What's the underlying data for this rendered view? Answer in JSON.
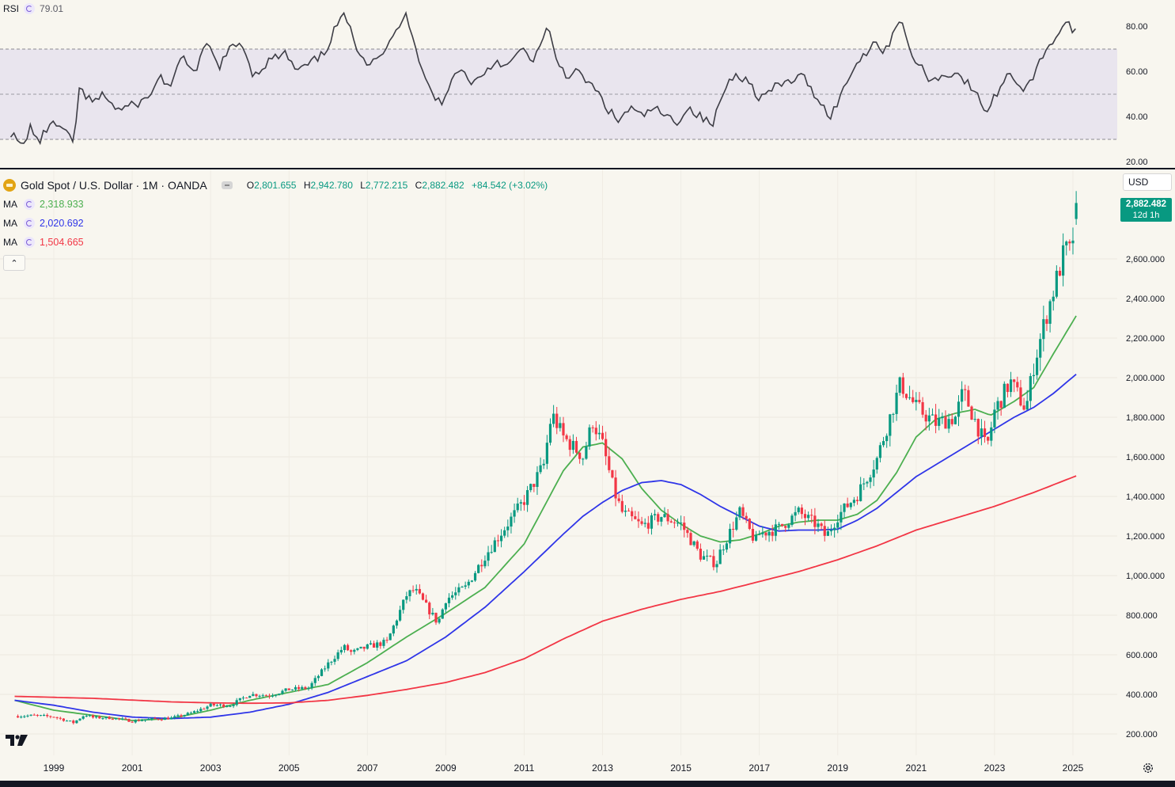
{
  "rsi": {
    "name": "RSI",
    "value": "79.01",
    "scale_labels": [
      "80.00",
      "60.00",
      "40.00",
      "20.00"
    ]
  },
  "symbol": {
    "title": "Gold Spot / U.S. Dollar · 1M · OANDA",
    "open_label": "O",
    "open": "2,801.655",
    "high_label": "H",
    "high": "2,942.780",
    "low_label": "L",
    "low": "2,772.215",
    "close_label": "C",
    "close": "2,882.482",
    "change": "+84.542 (+3.02%)"
  },
  "mas": [
    {
      "label": "MA",
      "value": "2,318.933",
      "color": "#4caf50"
    },
    {
      "label": "MA",
      "value": "2,020.692",
      "color": "#2f35e8"
    },
    {
      "label": "MA",
      "value": "1,504.665",
      "color": "#f23645"
    }
  ],
  "currency": "USD",
  "last_price": {
    "price": "2,882.482",
    "countdown": "12d 1h"
  },
  "colors": {
    "up": "#089981",
    "down": "#f23645",
    "rsi_line": "#3d3d45",
    "rsi_band": "#e9e5ee",
    "background": "#f8f6ef"
  },
  "icons": [
    "gold-coin-icon",
    "cycle-icon",
    "eye-icon",
    "chevron-up-icon",
    "tradingview-logo-icon",
    "gear-icon"
  ],
  "chart_data": {
    "type": "candlestick",
    "interval": "1M",
    "x_tick_labels": [
      "1999",
      "2001",
      "2003",
      "2005",
      "2007",
      "2009",
      "2011",
      "2013",
      "2015",
      "2017",
      "2019",
      "2021",
      "2023",
      "2025"
    ],
    "y_tick_labels": [
      "2,600.000",
      "2,400.000",
      "2,200.000",
      "2,000.000",
      "1,800.000",
      "1,600.000",
      "1,400.000",
      "1,200.000",
      "1,000.000",
      "800.000",
      "600.000",
      "400.000",
      "200.000"
    ],
    "ylim": [
      130,
      3080
    ],
    "close_anchors": [
      [
        1998.0,
        290
      ],
      [
        1998.5,
        293
      ],
      [
        1999.0,
        287
      ],
      [
        1999.5,
        257
      ],
      [
        1999.8,
        298
      ],
      [
        2000.0,
        283
      ],
      [
        2000.5,
        281
      ],
      [
        2001.0,
        265
      ],
      [
        2001.5,
        275
      ],
      [
        2002.0,
        280
      ],
      [
        2002.5,
        305
      ],
      [
        2003.0,
        345
      ],
      [
        2003.5,
        345
      ],
      [
        2004.0,
        400
      ],
      [
        2004.5,
        395
      ],
      [
        2005.0,
        425
      ],
      [
        2005.5,
        433
      ],
      [
        2006.0,
        555
      ],
      [
        2006.4,
        640
      ],
      [
        2006.6,
        610
      ],
      [
        2007.0,
        640
      ],
      [
        2007.5,
        665
      ],
      [
        2008.0,
        900
      ],
      [
        2008.2,
        930
      ],
      [
        2008.8,
        760
      ],
      [
        2009.0,
        880
      ],
      [
        2009.5,
        940
      ],
      [
        2010.0,
        1100
      ],
      [
        2010.5,
        1240
      ],
      [
        2011.0,
        1380
      ],
      [
        2011.5,
        1560
      ],
      [
        2011.7,
        1820
      ],
      [
        2012.0,
        1700
      ],
      [
        2012.5,
        1600
      ],
      [
        2012.75,
        1780
      ],
      [
        2013.0,
        1660
      ],
      [
        2013.3,
        1420
      ],
      [
        2013.5,
        1320
      ],
      [
        2014.0,
        1250
      ],
      [
        2014.5,
        1300
      ],
      [
        2015.0,
        1260
      ],
      [
        2015.5,
        1100
      ],
      [
        2015.9,
        1060
      ],
      [
        2016.0,
        1120
      ],
      [
        2016.5,
        1320
      ],
      [
        2016.9,
        1170
      ],
      [
        2017.0,
        1210
      ],
      [
        2017.5,
        1240
      ],
      [
        2018.0,
        1320
      ],
      [
        2018.5,
        1250
      ],
      [
        2018.7,
        1195
      ],
      [
        2019.0,
        1300
      ],
      [
        2019.5,
        1410
      ],
      [
        2020.0,
        1590
      ],
      [
        2020.6,
        1970
      ],
      [
        2021.0,
        1850
      ],
      [
        2021.5,
        1770
      ],
      [
        2022.0,
        1800
      ],
      [
        2022.2,
        1930
      ],
      [
        2022.8,
        1640
      ],
      [
        2023.0,
        1830
      ],
      [
        2023.4,
        1980
      ],
      [
        2023.8,
        1840
      ],
      [
        2024.0,
        2060
      ],
      [
        2024.3,
        2300
      ],
      [
        2024.8,
        2650
      ],
      [
        2024.95,
        2625
      ],
      [
        2025.1,
        2882
      ]
    ],
    "last_candle": {
      "open": 2801.655,
      "high": 2942.78,
      "low": 2772.215,
      "close": 2882.482
    },
    "moving_averages": [
      {
        "name": "MA",
        "value": 2318.933,
        "anchors": [
          [
            1998.0,
            370
          ],
          [
            1999.0,
            320
          ],
          [
            2001.0,
            268
          ],
          [
            2002.0,
            278
          ],
          [
            2003.0,
            320
          ],
          [
            2004.0,
            370
          ],
          [
            2005.0,
            410
          ],
          [
            2006.0,
            450
          ],
          [
            2007.0,
            560
          ],
          [
            2008.0,
            690
          ],
          [
            2009.0,
            810
          ],
          [
            2010.0,
            940
          ],
          [
            2011.0,
            1160
          ],
          [
            2012.0,
            1530
          ],
          [
            2012.5,
            1650
          ],
          [
            2013.0,
            1670
          ],
          [
            2013.5,
            1590
          ],
          [
            2014.0,
            1440
          ],
          [
            2014.5,
            1330
          ],
          [
            2015.0,
            1260
          ],
          [
            2015.5,
            1200
          ],
          [
            2016.0,
            1170
          ],
          [
            2016.5,
            1180
          ],
          [
            2017.0,
            1210
          ],
          [
            2017.5,
            1250
          ],
          [
            2018.0,
            1270
          ],
          [
            2018.5,
            1280
          ],
          [
            2019.0,
            1280
          ],
          [
            2019.5,
            1310
          ],
          [
            2020.0,
            1380
          ],
          [
            2020.5,
            1520
          ],
          [
            2021.0,
            1700
          ],
          [
            2021.5,
            1790
          ],
          [
            2022.0,
            1820
          ],
          [
            2022.5,
            1840
          ],
          [
            2022.9,
            1810
          ],
          [
            2023.5,
            1880
          ],
          [
            2024.0,
            1950
          ],
          [
            2024.5,
            2120
          ],
          [
            2025.1,
            2318
          ]
        ]
      },
      {
        "name": "MA",
        "value": 2020.692,
        "anchors": [
          [
            1998.0,
            370
          ],
          [
            1999.0,
            345
          ],
          [
            2000.0,
            310
          ],
          [
            2001.0,
            285
          ],
          [
            2002.0,
            278
          ],
          [
            2003.0,
            285
          ],
          [
            2004.0,
            310
          ],
          [
            2005.0,
            350
          ],
          [
            2006.0,
            410
          ],
          [
            2007.0,
            490
          ],
          [
            2008.0,
            570
          ],
          [
            2009.0,
            690
          ],
          [
            2010.0,
            840
          ],
          [
            2011.0,
            1020
          ],
          [
            2012.0,
            1210
          ],
          [
            2012.5,
            1300
          ],
          [
            2013.0,
            1370
          ],
          [
            2013.5,
            1430
          ],
          [
            2014.0,
            1470
          ],
          [
            2014.5,
            1480
          ],
          [
            2015.0,
            1460
          ],
          [
            2015.5,
            1410
          ],
          [
            2016.0,
            1350
          ],
          [
            2016.5,
            1300
          ],
          [
            2017.0,
            1250
          ],
          [
            2017.5,
            1225
          ],
          [
            2018.0,
            1230
          ],
          [
            2018.5,
            1230
          ],
          [
            2019.0,
            1235
          ],
          [
            2019.5,
            1280
          ],
          [
            2020.0,
            1340
          ],
          [
            2020.5,
            1420
          ],
          [
            2021.0,
            1500
          ],
          [
            2021.5,
            1560
          ],
          [
            2022.0,
            1620
          ],
          [
            2022.5,
            1680
          ],
          [
            2023.0,
            1740
          ],
          [
            2023.5,
            1800
          ],
          [
            2024.0,
            1850
          ],
          [
            2024.5,
            1920
          ],
          [
            2025.1,
            2020
          ]
        ]
      },
      {
        "name": "MA",
        "value": 1504.665,
        "anchors": [
          [
            1998.0,
            390
          ],
          [
            2000.0,
            380
          ],
          [
            2002.0,
            362
          ],
          [
            2003.0,
            357
          ],
          [
            2004.0,
            355
          ],
          [
            2005.0,
            357
          ],
          [
            2006.0,
            370
          ],
          [
            2007.0,
            395
          ],
          [
            2008.0,
            425
          ],
          [
            2009.0,
            460
          ],
          [
            2010.0,
            510
          ],
          [
            2011.0,
            580
          ],
          [
            2012.0,
            680
          ],
          [
            2013.0,
            770
          ],
          [
            2014.0,
            830
          ],
          [
            2015.0,
            880
          ],
          [
            2016.0,
            920
          ],
          [
            2017.0,
            970
          ],
          [
            2018.0,
            1020
          ],
          [
            2019.0,
            1080
          ],
          [
            2020.0,
            1150
          ],
          [
            2021.0,
            1230
          ],
          [
            2022.0,
            1290
          ],
          [
            2023.0,
            1350
          ],
          [
            2024.0,
            1420
          ],
          [
            2025.1,
            1505
          ]
        ]
      }
    ],
    "rsi": {
      "name": "RSI",
      "value": 79.01,
      "ylim": [
        20,
        86
      ],
      "upper_band": 70,
      "middle_line": 50,
      "lower_band": 30,
      "anchors": [
        [
          1997.9,
          33
        ],
        [
          1998.2,
          26
        ],
        [
          1998.4,
          36
        ],
        [
          1998.6,
          28
        ],
        [
          1998.9,
          37
        ],
        [
          1999.2,
          35
        ],
        [
          1999.5,
          28
        ],
        [
          1999.65,
          52
        ],
        [
          2000.0,
          46
        ],
        [
          2000.3,
          50
        ],
        [
          2000.6,
          43
        ],
        [
          2001.0,
          45
        ],
        [
          2001.4,
          48
        ],
        [
          2001.7,
          58
        ],
        [
          2002.0,
          53
        ],
        [
          2002.3,
          68
        ],
        [
          2002.6,
          58
        ],
        [
          2002.9,
          73
        ],
        [
          2003.2,
          62
        ],
        [
          2003.5,
          70
        ],
        [
          2003.8,
          73
        ],
        [
          2004.1,
          58
        ],
        [
          2004.5,
          65
        ],
        [
          2004.9,
          68
        ],
        [
          2005.2,
          60
        ],
        [
          2005.5,
          63
        ],
        [
          2005.9,
          68
        ],
        [
          2006.2,
          80
        ],
        [
          2006.4,
          86
        ],
        [
          2006.7,
          72
        ],
        [
          2007.0,
          64
        ],
        [
          2007.5,
          70
        ],
        [
          2007.8,
          80
        ],
        [
          2008.0,
          86
        ],
        [
          2008.3,
          67
        ],
        [
          2008.6,
          52
        ],
        [
          2008.9,
          45
        ],
        [
          2009.3,
          62
        ],
        [
          2009.7,
          55
        ],
        [
          2010.0,
          60
        ],
        [
          2010.3,
          65
        ],
        [
          2010.6,
          62
        ],
        [
          2010.9,
          70
        ],
        [
          2011.2,
          65
        ],
        [
          2011.5,
          74
        ],
        [
          2011.6,
          80
        ],
        [
          2011.8,
          66
        ],
        [
          2012.1,
          58
        ],
        [
          2012.3,
          60
        ],
        [
          2012.6,
          56
        ],
        [
          2012.9,
          50
        ],
        [
          2013.1,
          44
        ],
        [
          2013.4,
          38
        ],
        [
          2013.7,
          44
        ],
        [
          2014.0,
          40
        ],
        [
          2014.3,
          44
        ],
        [
          2014.6,
          40
        ],
        [
          2014.9,
          38
        ],
        [
          2015.2,
          44
        ],
        [
          2015.5,
          40
        ],
        [
          2015.8,
          36
        ],
        [
          2016.1,
          52
        ],
        [
          2016.4,
          60
        ],
        [
          2016.8,
          54
        ],
        [
          2017.0,
          48
        ],
        [
          2017.4,
          53
        ],
        [
          2017.8,
          56
        ],
        [
          2018.1,
          58
        ],
        [
          2018.5,
          48
        ],
        [
          2018.8,
          40
        ],
        [
          2019.1,
          50
        ],
        [
          2019.4,
          62
        ],
        [
          2019.7,
          68
        ],
        [
          2019.9,
          74
        ],
        [
          2020.2,
          68
        ],
        [
          2020.4,
          77
        ],
        [
          2020.6,
          85
        ],
        [
          2020.8,
          70
        ],
        [
          2021.1,
          62
        ],
        [
          2021.4,
          56
        ],
        [
          2021.7,
          58
        ],
        [
          2022.0,
          60
        ],
        [
          2022.3,
          55
        ],
        [
          2022.6,
          48
        ],
        [
          2022.8,
          42
        ],
        [
          2023.1,
          52
        ],
        [
          2023.4,
          60
        ],
        [
          2023.7,
          52
        ],
        [
          2024.0,
          58
        ],
        [
          2024.3,
          70
        ],
        [
          2024.6,
          76
        ],
        [
          2024.85,
          83
        ],
        [
          2025.0,
          76
        ],
        [
          2025.1,
          79
        ]
      ]
    }
  }
}
